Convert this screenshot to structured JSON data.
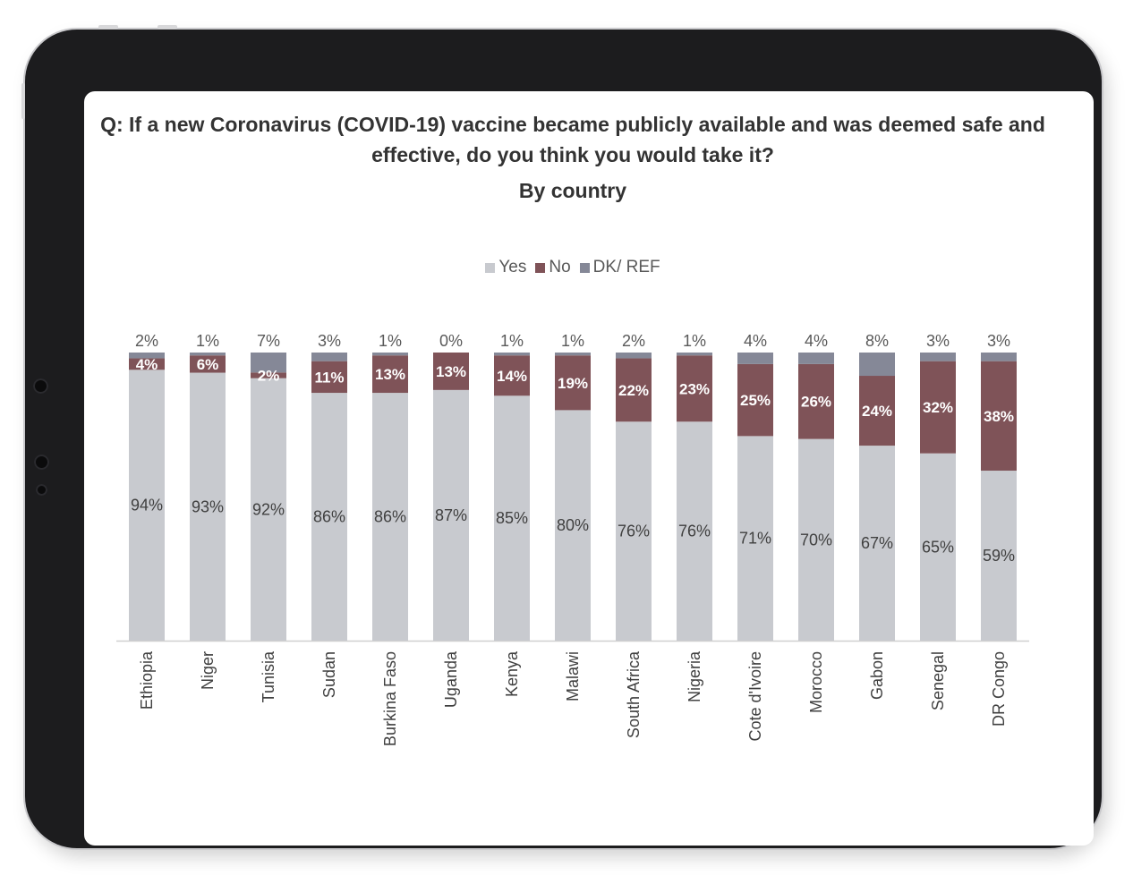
{
  "title": "Q: If a new Coronavirus (COVID-19) vaccine became publicly available and was deemed safe and effective, do you think you would take it?",
  "subtitle": "By country",
  "colors": {
    "yes": "#c8cacf",
    "no": "#7f5358",
    "dk": "#858897"
  },
  "chart_data": {
    "type": "bar",
    "stacked": true,
    "orientation": "vertical",
    "categories": [
      "Ethiopia",
      "Niger",
      "Tunisia",
      "Sudan",
      "Burkina Faso",
      "Uganda",
      "Kenya",
      "Malawi",
      "South Africa",
      "Nigeria",
      "Cote d'Ivoire",
      "Morocco",
      "Gabon",
      "Senegal",
      "DR Congo"
    ],
    "series": [
      {
        "name": "Yes",
        "values": [
          94,
          93,
          92,
          86,
          86,
          87,
          85,
          80,
          76,
          76,
          71,
          70,
          67,
          65,
          59
        ]
      },
      {
        "name": "No",
        "values": [
          4,
          6,
          2,
          11,
          13,
          13,
          14,
          19,
          22,
          23,
          25,
          26,
          24,
          32,
          38
        ]
      },
      {
        "name": "DK/ REF",
        "values": [
          2,
          1,
          7,
          3,
          1,
          0,
          1,
          1,
          2,
          1,
          4,
          4,
          8,
          3,
          3
        ]
      }
    ],
    "value_suffix": "%",
    "legend_position": "top",
    "grid": false,
    "ylim": [
      0,
      100
    ]
  }
}
